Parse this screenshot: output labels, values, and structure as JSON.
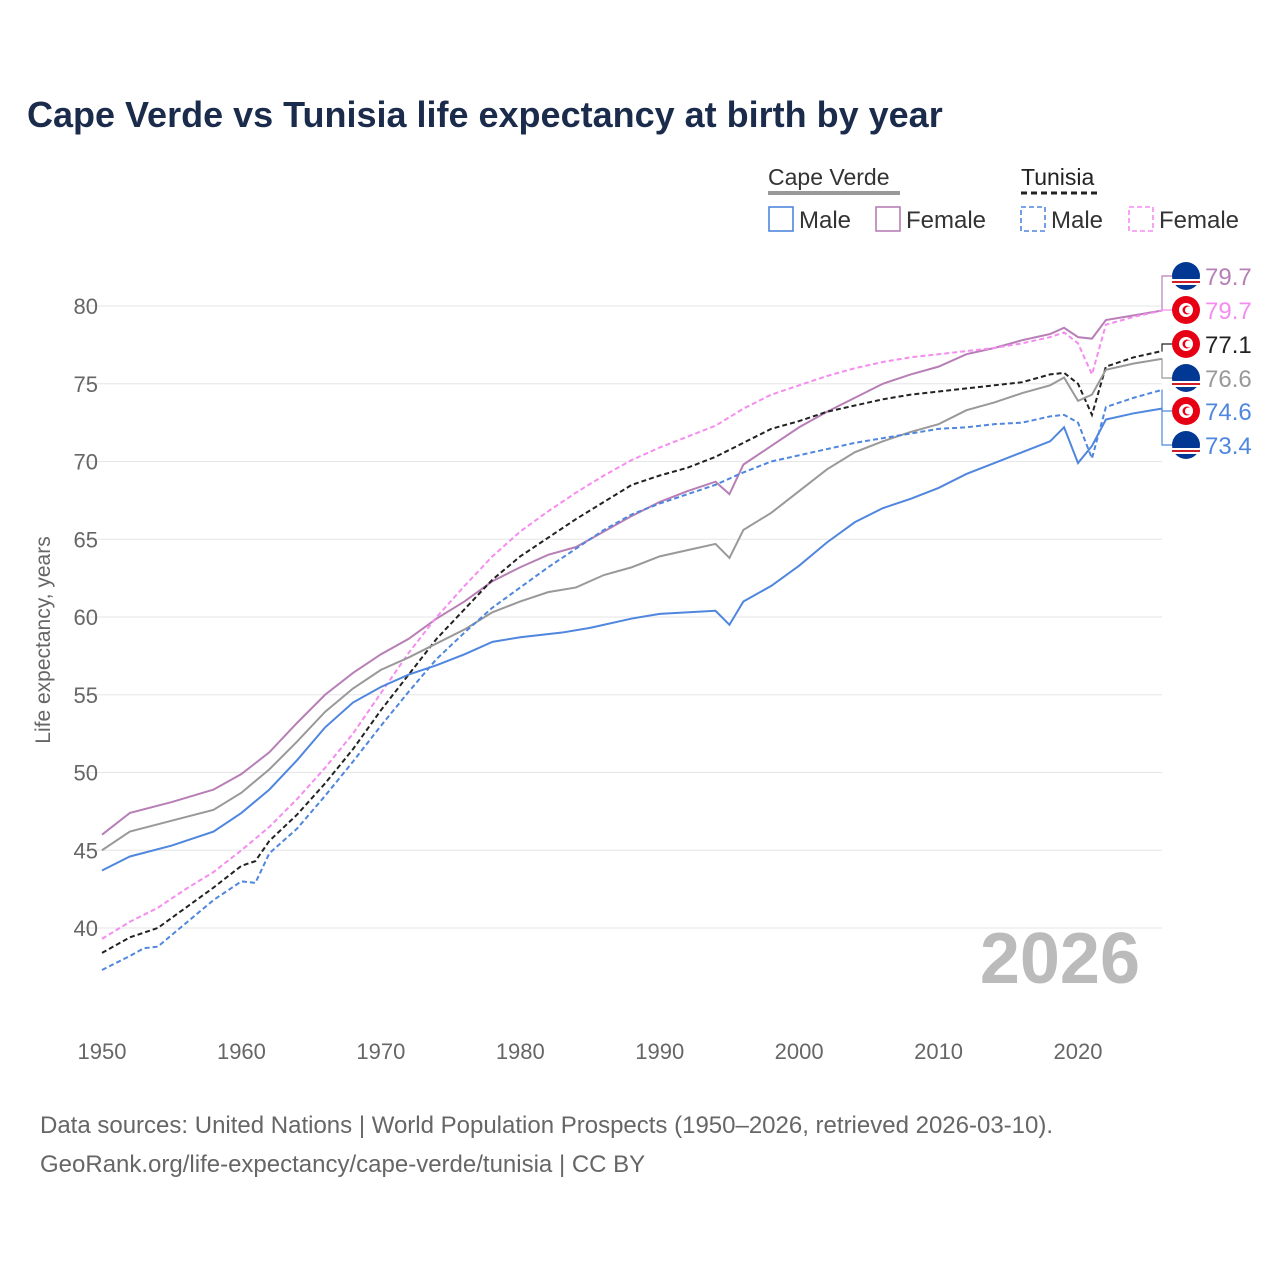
{
  "title": "Cape Verde vs Tunisia life expectancy at birth by year",
  "legend": {
    "groups": [
      {
        "name": "Cape Verde",
        "items": [
          "Male",
          "Female"
        ]
      },
      {
        "name": "Tunisia",
        "items": [
          "Male",
          "Female"
        ]
      }
    ]
  },
  "year_watermark": "2026",
  "source_line1": "Data sources: United Nations | World Population Prospects (1950–2026, retrieved 2026-03-10).",
  "source_line2": "GeoRank.org/life-expectancy/cape-verde/tunisia | CC BY",
  "chart_data": {
    "type": "line",
    "title": "Cape Verde vs Tunisia life expectancy at birth by year",
    "xlabel": "",
    "ylabel": "Life expectancy, years",
    "xlim": [
      1950,
      2026
    ],
    "ylim": [
      35,
      83
    ],
    "xticks": [
      1950,
      1960,
      1970,
      1980,
      1990,
      2000,
      2010,
      2020
    ],
    "yticks": [
      40,
      45,
      50,
      55,
      60,
      65,
      70,
      75,
      80
    ],
    "grid": true,
    "legend_position": "top-right",
    "series": [
      {
        "name": "Cape Verde Female",
        "country": "cape-verde",
        "color": "#b77fb5",
        "dashed": false,
        "end_label": "79.7",
        "x": [
          1950,
          1952,
          1955,
          1958,
          1960,
          1962,
          1964,
          1966,
          1968,
          1970,
          1972,
          1974,
          1976,
          1978,
          1980,
          1982,
          1984,
          1986,
          1988,
          1990,
          1992,
          1994,
          1995,
          1996,
          1998,
          2000,
          2002,
          2004,
          2006,
          2008,
          2010,
          2012,
          2014,
          2016,
          2018,
          2019,
          2020,
          2021,
          2022,
          2024,
          2026
        ],
        "y": [
          46.0,
          47.4,
          48.1,
          48.9,
          49.9,
          51.3,
          53.2,
          55.0,
          56.4,
          57.6,
          58.6,
          59.9,
          61.0,
          62.3,
          63.2,
          64.0,
          64.5,
          65.5,
          66.5,
          67.4,
          68.1,
          68.7,
          67.9,
          69.8,
          71.0,
          72.2,
          73.2,
          74.1,
          75.0,
          75.6,
          76.1,
          76.9,
          77.3,
          77.8,
          78.2,
          78.6,
          78.0,
          77.9,
          79.1,
          79.4,
          79.7
        ]
      },
      {
        "name": "Tunisia Female",
        "country": "tunisia",
        "color": "#f58cf0",
        "dashed": true,
        "end_label": "79.7",
        "x": [
          1950,
          1952,
          1954,
          1956,
          1958,
          1960,
          1962,
          1964,
          1966,
          1968,
          1970,
          1972,
          1974,
          1976,
          1978,
          1980,
          1982,
          1984,
          1986,
          1988,
          1990,
          1992,
          1994,
          1996,
          1998,
          2000,
          2002,
          2004,
          2006,
          2008,
          2010,
          2012,
          2014,
          2016,
          2018,
          2019,
          2020,
          2021,
          2022,
          2024,
          2026
        ],
        "y": [
          39.3,
          40.4,
          41.3,
          42.5,
          43.6,
          45.0,
          46.5,
          48.3,
          50.3,
          52.5,
          55.1,
          57.7,
          60.0,
          62.0,
          63.9,
          65.5,
          66.8,
          68.0,
          69.1,
          70.1,
          70.9,
          71.6,
          72.3,
          73.4,
          74.3,
          74.9,
          75.5,
          76.0,
          76.4,
          76.7,
          76.9,
          77.1,
          77.3,
          77.6,
          78.0,
          78.3,
          77.6,
          75.6,
          78.8,
          79.3,
          79.7
        ]
      },
      {
        "name": "Tunisia",
        "country": "tunisia",
        "color": "#222222",
        "dashed": true,
        "end_label": "77.1",
        "x": [
          1950,
          1952,
          1954,
          1956,
          1958,
          1960,
          1961,
          1962,
          1964,
          1966,
          1968,
          1970,
          1972,
          1974,
          1976,
          1978,
          1980,
          1982,
          1984,
          1986,
          1988,
          1990,
          1992,
          1994,
          1996,
          1998,
          2000,
          2002,
          2004,
          2006,
          2008,
          2010,
          2012,
          2014,
          2016,
          2018,
          2019,
          2020,
          2021,
          2022,
          2024,
          2026
        ],
        "y": [
          38.4,
          39.4,
          40.0,
          41.3,
          42.6,
          44.0,
          44.3,
          45.6,
          47.3,
          49.3,
          51.5,
          54.0,
          56.3,
          58.6,
          60.5,
          62.4,
          63.9,
          65.1,
          66.3,
          67.4,
          68.5,
          69.1,
          69.6,
          70.3,
          71.2,
          72.1,
          72.6,
          73.2,
          73.6,
          74.0,
          74.3,
          74.5,
          74.7,
          74.9,
          75.1,
          75.6,
          75.7,
          75.0,
          73.0,
          76.1,
          76.7,
          77.1
        ]
      },
      {
        "name": "Cape Verde",
        "country": "cape-verde",
        "color": "#999999",
        "dashed": false,
        "end_label": "76.6",
        "x": [
          1950,
          1952,
          1955,
          1958,
          1960,
          1962,
          1964,
          1966,
          1968,
          1970,
          1972,
          1974,
          1976,
          1978,
          1980,
          1982,
          1984,
          1986,
          1988,
          1990,
          1992,
          1994,
          1995,
          1996,
          1998,
          2000,
          2002,
          2004,
          2006,
          2008,
          2010,
          2012,
          2014,
          2016,
          2018,
          2019,
          2020,
          2021,
          2022,
          2024,
          2026
        ],
        "y": [
          45.0,
          46.2,
          46.9,
          47.6,
          48.7,
          50.2,
          52.0,
          53.9,
          55.4,
          56.6,
          57.4,
          58.3,
          59.2,
          60.3,
          61.0,
          61.6,
          61.9,
          62.7,
          63.2,
          63.9,
          64.3,
          64.7,
          63.8,
          65.6,
          66.7,
          68.1,
          69.5,
          70.6,
          71.3,
          71.9,
          72.4,
          73.3,
          73.8,
          74.4,
          74.9,
          75.4,
          73.9,
          74.3,
          75.9,
          76.3,
          76.6
        ]
      },
      {
        "name": "Tunisia Male",
        "country": "tunisia",
        "color": "#4f86de",
        "dashed": true,
        "end_label": "74.6",
        "x": [
          1950,
          1952,
          1953,
          1954,
          1956,
          1958,
          1960,
          1961,
          1962,
          1964,
          1966,
          1968,
          1970,
          1972,
          1974,
          1976,
          1978,
          1980,
          1982,
          1984,
          1986,
          1988,
          1990,
          1992,
          1994,
          1996,
          1998,
          2000,
          2002,
          2004,
          2006,
          2008,
          2010,
          2012,
          2014,
          2016,
          2018,
          2019,
          2020,
          2021,
          2022,
          2024,
          2026
        ],
        "y": [
          37.3,
          38.2,
          38.7,
          38.8,
          40.3,
          41.8,
          43.0,
          42.9,
          44.8,
          46.4,
          48.5,
          50.7,
          53.0,
          55.2,
          57.3,
          59.0,
          60.6,
          61.9,
          63.2,
          64.4,
          65.6,
          66.6,
          67.3,
          67.9,
          68.5,
          69.3,
          70.0,
          70.4,
          70.8,
          71.2,
          71.5,
          71.8,
          72.1,
          72.2,
          72.4,
          72.5,
          72.9,
          73.0,
          72.5,
          70.2,
          73.5,
          74.1,
          74.6
        ]
      },
      {
        "name": "Cape Verde Male",
        "country": "cape-verde",
        "color": "#4f86de",
        "dashed": false,
        "end_label": "73.4",
        "x": [
          1950,
          1952,
          1955,
          1958,
          1960,
          1962,
          1964,
          1966,
          1968,
          1970,
          1972,
          1974,
          1976,
          1978,
          1980,
          1983,
          1985,
          1988,
          1990,
          1994,
          1995,
          1996,
          1998,
          2000,
          2002,
          2004,
          2006,
          2008,
          2010,
          2012,
          2014,
          2016,
          2018,
          2019,
          2020,
          2021,
          2022,
          2024,
          2026
        ],
        "y": [
          43.7,
          44.6,
          45.3,
          46.2,
          47.4,
          48.9,
          50.8,
          52.9,
          54.5,
          55.5,
          56.3,
          56.9,
          57.6,
          58.4,
          58.7,
          59.0,
          59.3,
          59.9,
          60.2,
          60.4,
          59.5,
          61.0,
          62.0,
          63.3,
          64.8,
          66.1,
          67.0,
          67.6,
          68.3,
          69.2,
          69.9,
          70.6,
          71.3,
          72.2,
          69.9,
          71.0,
          72.7,
          73.1,
          73.4
        ]
      }
    ]
  }
}
